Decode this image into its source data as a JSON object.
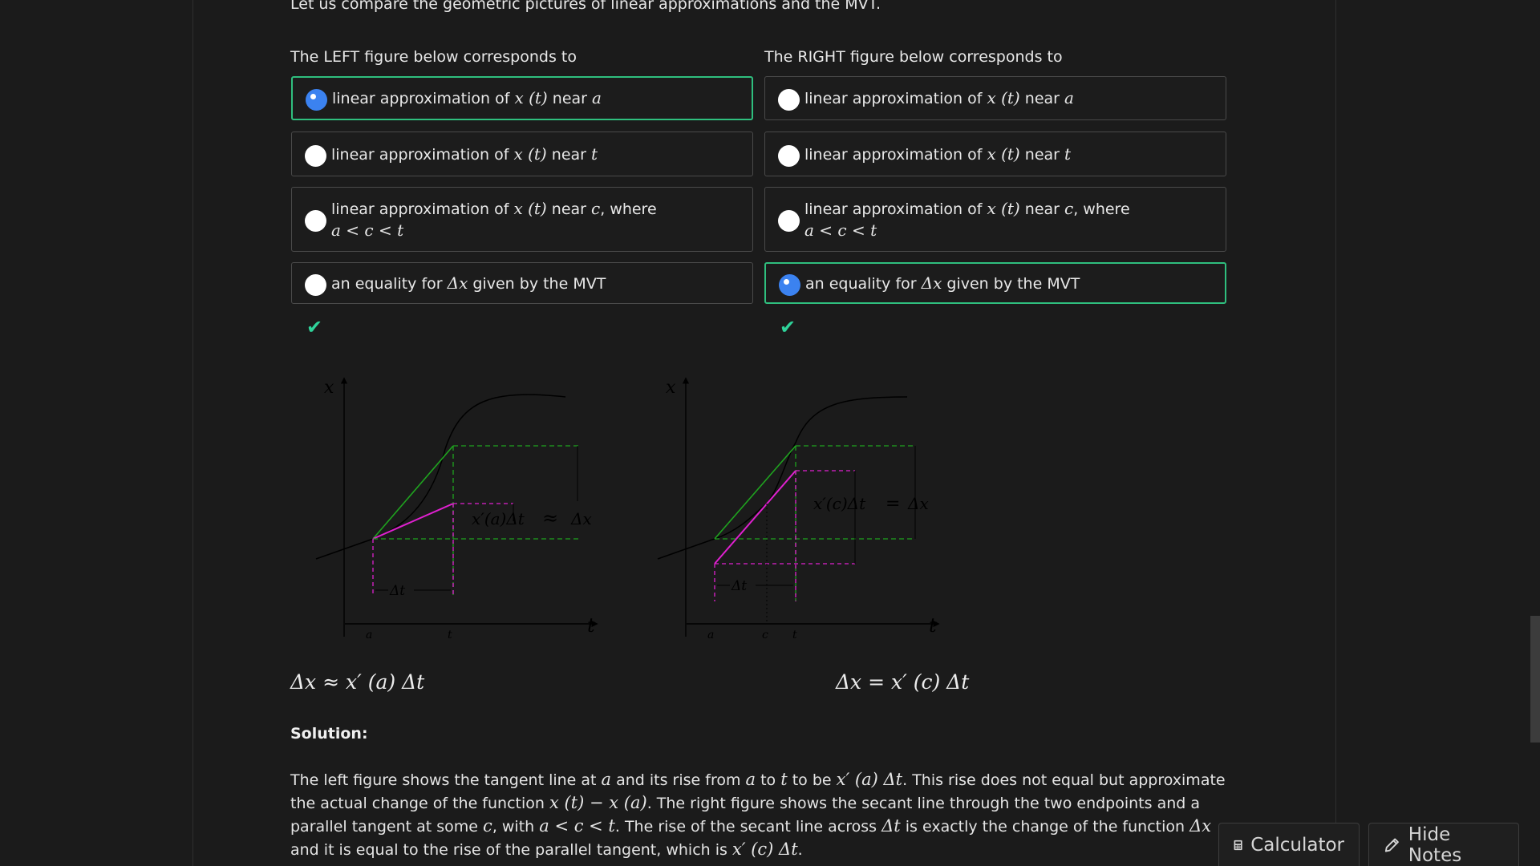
{
  "intro": "Let us compare the geometric pictures of linear approximations and the MVT.",
  "left_heading": "The LEFT figure below corresponds to",
  "right_heading": "The RIGHT figure below corresponds to",
  "option_labels": {
    "opt1_prefix": "linear approximation of ",
    "opt1_fn": "x (t)",
    "opt1_mid": " near ",
    "opt1_var": "a",
    "opt2_prefix": "linear approximation of ",
    "opt2_fn": "x (t)",
    "opt2_mid": " near ",
    "opt2_var": "t",
    "opt3_prefix": "linear approximation of ",
    "opt3_fn": "x (t)",
    "opt3_mid": " near ",
    "opt3_var": "c",
    "opt3_suffix": ", where",
    "opt3_ineq": "a < c < t",
    "opt4_prefix": "an equality for ",
    "opt4_var": "Δx",
    "opt4_suffix": " given by the MVT"
  },
  "left_selected_option": 1,
  "right_selected_option": 4,
  "check_mark": "✔",
  "left_figure": {
    "axis_x": "x",
    "axis_t": "t",
    "tick_a": "a",
    "tick_t": "t",
    "delta_t": "Δt",
    "annotation_lhs": "x′(a)Δt",
    "annotation_rel": "≈",
    "annotation_rhs": "Δx"
  },
  "right_figure": {
    "axis_x": "x",
    "axis_t": "t",
    "tick_a": "a",
    "tick_c": "c",
    "tick_t": "t",
    "delta_t": "Δt",
    "annotation_lhs": "x′(c)Δt",
    "annotation_rel": "=",
    "annotation_rhs": "Δx"
  },
  "left_formula": "Δx ≈ x′ (a) Δt",
  "right_formula": "Δx = x′ (c) Δt",
  "solution_title": "Solution:",
  "solution": {
    "s1": "The left figure shows the tangent line at ",
    "m1": "a",
    "s2": " and its rise from ",
    "m2": "a",
    "s3": " to ",
    "m3": "t",
    "s4": " to be ",
    "m4": "x′ (a) Δt",
    "s5": ". This rise does not equal but approximate the actual change of the function ",
    "m5": "x (t) − x (a)",
    "s6": ". The right figure shows the secant line through the two endpoints and a parallel tangent at some ",
    "m6": "c",
    "s7": ", with ",
    "m7": "a < c < t",
    "s8": ". The rise of the secant line across ",
    "m8": "Δt",
    "s9": " is exactly the change of the function ",
    "m9": "Δx",
    "s10": " and it is equal to the rise of the parallel tangent, which is ",
    "m10": "x′ (c) Δt",
    "s11": "."
  },
  "buttons": {
    "calculator": "Calculator",
    "hide_notes": "Hide Notes"
  },
  "colors": {
    "selected_border": "#2fbf7e",
    "radio_selected": "#3b82f0",
    "check": "#2fd39a",
    "tangent_green": "#1fa31f",
    "magenta": "#e020d0"
  }
}
